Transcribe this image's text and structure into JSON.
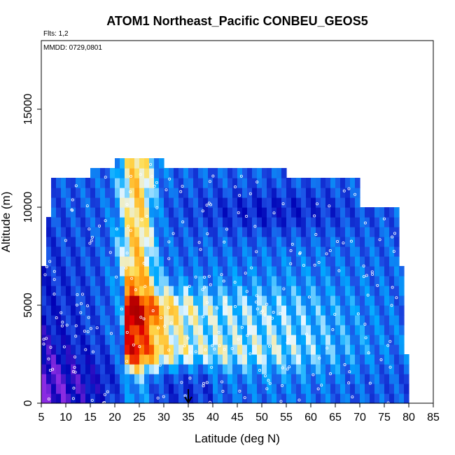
{
  "chart_data": {
    "type": "heatmap",
    "title": "ATOM1 Northeast_Pacific CONBEU_GEOS5",
    "subtitle_flights": "Flts: 1,2",
    "annotation_dates": "MMDD: 0729,0801",
    "xlabel": "Latitude (deg N)",
    "ylabel": "Altitude (m)",
    "xlim": [
      5,
      85
    ],
    "ylim": [
      0,
      18500
    ],
    "x_ticks": [
      5,
      10,
      15,
      20,
      25,
      30,
      35,
      40,
      45,
      50,
      55,
      60,
      65,
      70,
      75,
      80,
      85
    ],
    "y_ticks": [
      0,
      5000,
      10000,
      15000
    ],
    "x_tick_labels": [
      "5",
      "10",
      "15",
      "20",
      "25",
      "30",
      "35",
      "40",
      "45",
      "50",
      "55",
      "60",
      "65",
      "70",
      "75",
      "80",
      "85"
    ],
    "y_tick_labels": [
      "0",
      "5000",
      "10000",
      "15000"
    ],
    "marker_arrow_latitude": 35,
    "grid": false,
    "colors": {
      "purple": "#8a2be2",
      "dark_blue": "#0000b4",
      "blue": "#1e50e6",
      "light_blue": "#00aaff",
      "pale": "#e6f6ff",
      "yellow": "#ffdc50",
      "orange": "#ff8c00",
      "red": "#e60000",
      "dark_red": "#aa0000"
    }
  }
}
